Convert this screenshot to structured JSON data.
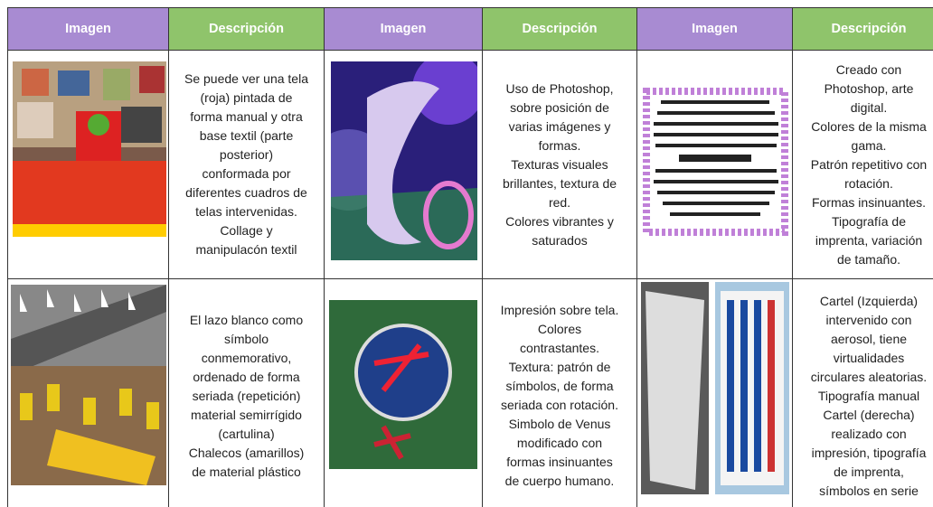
{
  "table": {
    "header": [
      "Imagen",
      "Descripción",
      "Imagen",
      "Descripción",
      "Imagen",
      "Descripción"
    ],
    "rows": [
      [
        [
          "Se puede ver una tela",
          "(roja) pintada de",
          "forma manual y otra",
          "base textil (parte",
          "posterior)",
          "conformada por",
          "diferentes cuadros de",
          "telas intervenidas.",
          "Collage y",
          "manipulacón textil"
        ],
        [
          "Uso de Photoshop,",
          "sobre posición de",
          "varias imágenes y",
          "formas.",
          "Texturas visuales",
          "brillantes, textura de",
          "red.",
          "Colores vibrantes y",
          "saturados"
        ],
        [
          "Creado con",
          "Photoshop, arte",
          "digital.",
          "Colores de la misma",
          "gama.",
          "Patrón repetitivo con",
          "rotación.",
          "Formas insinuantes.",
          "Tipografía de",
          "imprenta, variación",
          "de tamaño."
        ]
      ],
      [
        [
          "El lazo blanco como",
          "símbolo",
          "conmemorativo,",
          "ordenado de forma",
          "seriada (repetición)",
          "material semirrígido",
          "(cartulina)",
          "Chalecos (amarillos)",
          "de material plástico"
        ],
        [
          "Impresión sobre tela.",
          "Colores",
          "contrastantes.",
          "Textura: patrón de",
          "símbolos, de forma",
          "seriada con rotación.",
          "Simbolo de Venus",
          "modificado con",
          "formas insinuantes",
          "de cuerpo humano."
        ],
        [
          "Cartel (Izquierda)",
          "intervenido con",
          "aerosol, tiene",
          "virtualidades",
          "circulares aleatorias.",
          "Tipografía manual",
          "Cartel (derecha)",
          "realizado con",
          "impresión, tipografía",
          "de imprenta,",
          "símbolos en serie"
        ]
      ]
    ]
  }
}
